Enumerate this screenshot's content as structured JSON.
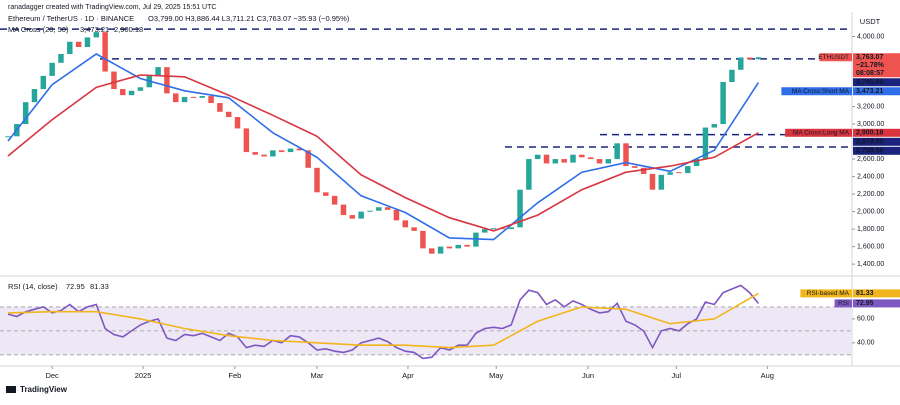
{
  "header": {
    "credit": "ranadagger created with TradingView.com, Jul 29, 2025 15:51 UTC",
    "symbol": "Ethereum / TetherUS · 1D · BINANCE",
    "ohlc": "O3,799.00 H3,886.44 L3,711.21 C3,763.07 −35.93 (−0.95%)",
    "ma_legend": "MA Cross (20, 50)"
  },
  "footer": "TradingView",
  "chart_data": [
    {
      "type": "candlestick",
      "axis_unit": "USDT",
      "closes": [
        2860,
        3000,
        3250,
        3400,
        3550,
        3700,
        3800,
        3940,
        3880,
        3990,
        4050,
        3600,
        3400,
        3330,
        3380,
        3420,
        3550,
        3650,
        3350,
        3250,
        3310,
        3300,
        3320,
        3240,
        3140,
        3080,
        2950,
        2680,
        2650,
        2630,
        2700,
        2680,
        2720,
        2700,
        2500,
        2220,
        2180,
        2080,
        1960,
        1920,
        2000,
        2010,
        2050,
        2020,
        1900,
        1820,
        1780,
        1580,
        1520,
        1600,
        1580,
        1620,
        1600,
        1760,
        1800,
        1810,
        1800,
        1820,
        2250,
        2600,
        2650,
        2550,
        2600,
        2560,
        2650,
        2620,
        2600,
        2550,
        2600,
        2780,
        2520,
        2500,
        2430,
        2250,
        2420,
        2450,
        2440,
        2520,
        2600,
        2960,
        3000,
        3480,
        3620,
        3760,
        3740,
        3763.07
      ],
      "up_color": "#26a69a",
      "down_color": "#ef5350",
      "xlim": [
        0,
        95.6
      ],
      "ylim": [
        1310,
        4280
      ],
      "xticks": [
        {
          "value": 5,
          "label": "Dec"
        },
        {
          "value": 15.3,
          "label": "2025"
        },
        {
          "value": 25.7,
          "label": "Feb"
        },
        {
          "value": 35,
          "label": "Mar"
        },
        {
          "value": 45.3,
          "label": "Apr"
        },
        {
          "value": 55.3,
          "label": "May"
        },
        {
          "value": 65.7,
          "label": "Jun"
        },
        {
          "value": 75.7,
          "label": "Jul"
        },
        {
          "value": 86,
          "label": "Aug"
        }
      ],
      "yticks": [
        {
          "value": 1400,
          "label": "1,400.00"
        },
        {
          "value": 1600,
          "label": "1,600.00"
        },
        {
          "value": 1800,
          "label": "1,800.00"
        },
        {
          "value": 2000,
          "label": "2,000.00"
        },
        {
          "value": 2200,
          "label": "2,200.00"
        },
        {
          "value": 2400,
          "label": "2,400.00"
        },
        {
          "value": 2600,
          "label": "2,600.00"
        },
        {
          "value": 3000,
          "label": "3,000.00"
        },
        {
          "value": 3200,
          "label": "3,200.00"
        },
        {
          "value": 4000,
          "label": "4,000.00"
        }
      ],
      "levels": [
        {
          "value": 4085
        },
        {
          "value": 3745,
          "label": "3,745.00"
        },
        {
          "value": 2879,
          "label": "2,879.00"
        },
        {
          "value": 2738.5,
          "label": "2,738.50"
        }
      ],
      "level_color": "#1a237e",
      "price_label": {
        "name": "ETHUSDT",
        "value": 3763.07,
        "label": "3,763.07",
        "change": "−21.78%",
        "countdown": "08:08:57",
        "color": "#ef5350"
      },
      "series": [
        {
          "name": "MA Cross:Short MA",
          "color": "#2f6ee8",
          "value_label": "3,473.21",
          "x": [
            0,
            5,
            10,
            15,
            20,
            25,
            30,
            35,
            40,
            45,
            50,
            55,
            60,
            65,
            70,
            75,
            80,
            85
          ],
          "values": [
            2805,
            3450,
            3800,
            3520,
            3380,
            3300,
            2900,
            2620,
            2180,
            1990,
            1700,
            1680,
            2100,
            2450,
            2560,
            2460,
            2700,
            3473.21
          ]
        },
        {
          "name": "MA Cross:Long MA",
          "color": "#d9343f",
          "value_label": "2,900.18",
          "x": [
            0,
            5,
            10,
            15,
            20,
            25,
            30,
            35,
            40,
            45,
            50,
            55,
            60,
            65,
            70,
            75,
            80,
            85
          ],
          "values": [
            2635,
            3050,
            3420,
            3560,
            3540,
            3330,
            3100,
            2860,
            2420,
            2160,
            1930,
            1780,
            1960,
            2250,
            2450,
            2520,
            2620,
            2900.18
          ]
        }
      ]
    },
    {
      "type": "line",
      "title": "RSI (14, close)",
      "xlim": [
        0,
        95.6
      ],
      "ylim": [
        24,
        92.5
      ],
      "yticks": [
        {
          "value": 60,
          "label": "60.00"
        },
        {
          "value": 40,
          "label": "40.00"
        }
      ],
      "band": [
        30,
        70
      ],
      "levels": [
        70,
        50,
        30
      ],
      "band_color": "#ede7f6",
      "series": [
        {
          "name": "RSI",
          "color": "#7e57c2",
          "value_label": "72.95",
          "x": [
            0,
            1,
            2,
            3,
            4,
            5,
            6,
            7,
            8,
            9,
            10,
            11,
            12,
            13,
            14,
            15,
            16,
            17,
            18,
            19,
            20,
            21,
            22,
            23,
            24,
            25,
            26,
            27,
            28,
            29,
            30,
            31,
            32,
            33,
            34,
            35,
            36,
            37,
            38,
            39,
            40,
            41,
            42,
            43,
            44,
            45,
            46,
            47,
            48,
            49,
            50,
            51,
            52,
            53,
            54,
            55,
            56,
            57,
            58,
            59,
            60,
            61,
            62,
            63,
            64,
            65,
            66,
            67,
            68,
            69,
            70,
            71,
            72,
            73,
            74,
            75,
            76,
            77,
            78,
            79,
            80,
            81,
            82,
            83,
            84,
            85
          ],
          "values": [
            64,
            62,
            66,
            68,
            70,
            65,
            67,
            72,
            66,
            70,
            72,
            52,
            47,
            45,
            50,
            55,
            58,
            60,
            44,
            42,
            47,
            46,
            48,
            45,
            42,
            48,
            45,
            36,
            38,
            37,
            42,
            40,
            46,
            45,
            40,
            34,
            35,
            33,
            32,
            34,
            40,
            42,
            44,
            41,
            36,
            33,
            32,
            27,
            28,
            36,
            34,
            38,
            38,
            48,
            52,
            53,
            52,
            55,
            76,
            84,
            82,
            72,
            76,
            70,
            75,
            72,
            68,
            65,
            66,
            73,
            58,
            55,
            50,
            36,
            50,
            52,
            50,
            56,
            60,
            74,
            72,
            82,
            85,
            88,
            82,
            72.95
          ]
        },
        {
          "name": "RSI-based MA",
          "color": "#f2b51c",
          "value_label": "81.33",
          "x": [
            0,
            5,
            10,
            15,
            20,
            25,
            30,
            35,
            40,
            45,
            50,
            55,
            60,
            65,
            70,
            75,
            80,
            85
          ],
          "values": [
            65,
            66,
            66,
            60,
            52,
            46,
            42,
            40,
            38,
            38,
            36,
            38,
            58,
            70,
            68,
            56,
            60,
            81.33
          ]
        }
      ]
    }
  ]
}
